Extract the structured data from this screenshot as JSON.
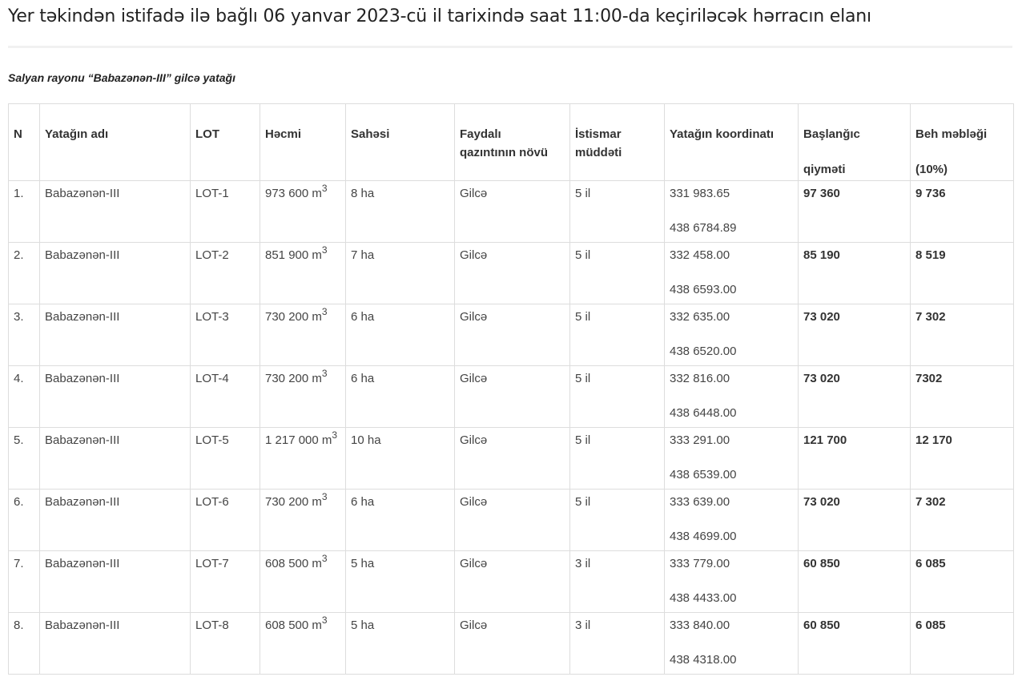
{
  "title": "Yer təkindən istifadə ilə bağlı 06 yanvar 2023-cü il tarixində saat 11:00-da keçiriləcək hərracın elanı",
  "subtitle": "Salyan rayonu “Babazənən-III” gilcə yatağı",
  "headers": {
    "n": "N",
    "name": "Yatağın adı",
    "lot": "LOT",
    "volume": "Həcmi",
    "area": "Sahəsi",
    "type_1": "Faydalı",
    "type_2": "qazıntının növü",
    "term_1": "İstismar",
    "term_2": "müddəti",
    "coords": "Yatağın koordinatı",
    "price_1": "Başlanğıc",
    "price_2": "qiyməti",
    "deposit_1": "Beh məbləği",
    "deposit_2": "(10%)"
  },
  "rows": [
    {
      "n": "1.",
      "name": "Babazənən-III",
      "lot": "LOT-1",
      "volume": "973 600 m",
      "unit_exp": "3",
      "area": "8 ha",
      "type": "Gilcə",
      "term": "5 il",
      "x": "331 983.65",
      "y": "438 6784.89",
      "price": "97 360",
      "deposit": "9 736"
    },
    {
      "n": "2.",
      "name": "Babazənən-III",
      "lot": "LOT-2",
      "volume": "851 900 m",
      "unit_exp": "3",
      "area": "7 ha",
      "type": "Gilcə",
      "term": "5 il",
      "x": "332 458.00",
      "y": "438 6593.00",
      "price": "85 190",
      "deposit": "8 519"
    },
    {
      "n": "3.",
      "name": "Babazənən-III",
      "lot": "LOT-3",
      "volume": "730 200 m",
      "unit_exp": "3",
      "area": "6 ha",
      "type": "Gilcə",
      "term": "5 il",
      "x": "332 635.00",
      "y": "438 6520.00",
      "price": "73 020",
      "deposit": "7 302"
    },
    {
      "n": "4.",
      "name": "Babazənən-III",
      "lot": "LOT-4",
      "volume": "730 200 m",
      "unit_exp": "3",
      "area": "6 ha",
      "type": "Gilcə",
      "term": "5 il",
      "x": "332 816.00",
      "y": "438 6448.00",
      "price": "73 020",
      "deposit": "7302"
    },
    {
      "n": "5.",
      "name": "Babazənən-III",
      "lot": "LOT-5",
      "volume": "1 217 000 m",
      "unit_exp": "3",
      "area": "10 ha",
      "type": "Gilcə",
      "term": "5 il",
      "x": "333 291.00",
      "y": "438 6539.00",
      "price": "121 700",
      "deposit": "12 170"
    },
    {
      "n": "6.",
      "name": "Babazənən-III",
      "lot": "LOT-6",
      "volume": "730 200 m",
      "unit_exp": "3",
      "area": "6 ha",
      "type": "Gilcə",
      "term": "5 il",
      "x": "333 639.00",
      "y": "438 4699.00",
      "price": "73 020",
      "deposit": "7 302"
    },
    {
      "n": "7.",
      "name": "Babazənən-III",
      "lot": "LOT-7",
      "volume": "608 500 m",
      "unit_exp": "3",
      "area": "5 ha",
      "type": "Gilcə",
      "term": "3 il",
      "x": "333 779.00",
      "y": "438 4433.00",
      "price": "60 850",
      "deposit": "6 085"
    },
    {
      "n": "8.",
      "name": "Babazənən-III",
      "lot": "LOT-8",
      "volume": "608 500 m",
      "unit_exp": "3",
      "area": "5 ha",
      "type": "Gilcə",
      "term": "3 il",
      "x": "333 840.00",
      "y": "438 4318.00",
      "price": "60 850",
      "deposit": "6 085"
    }
  ]
}
